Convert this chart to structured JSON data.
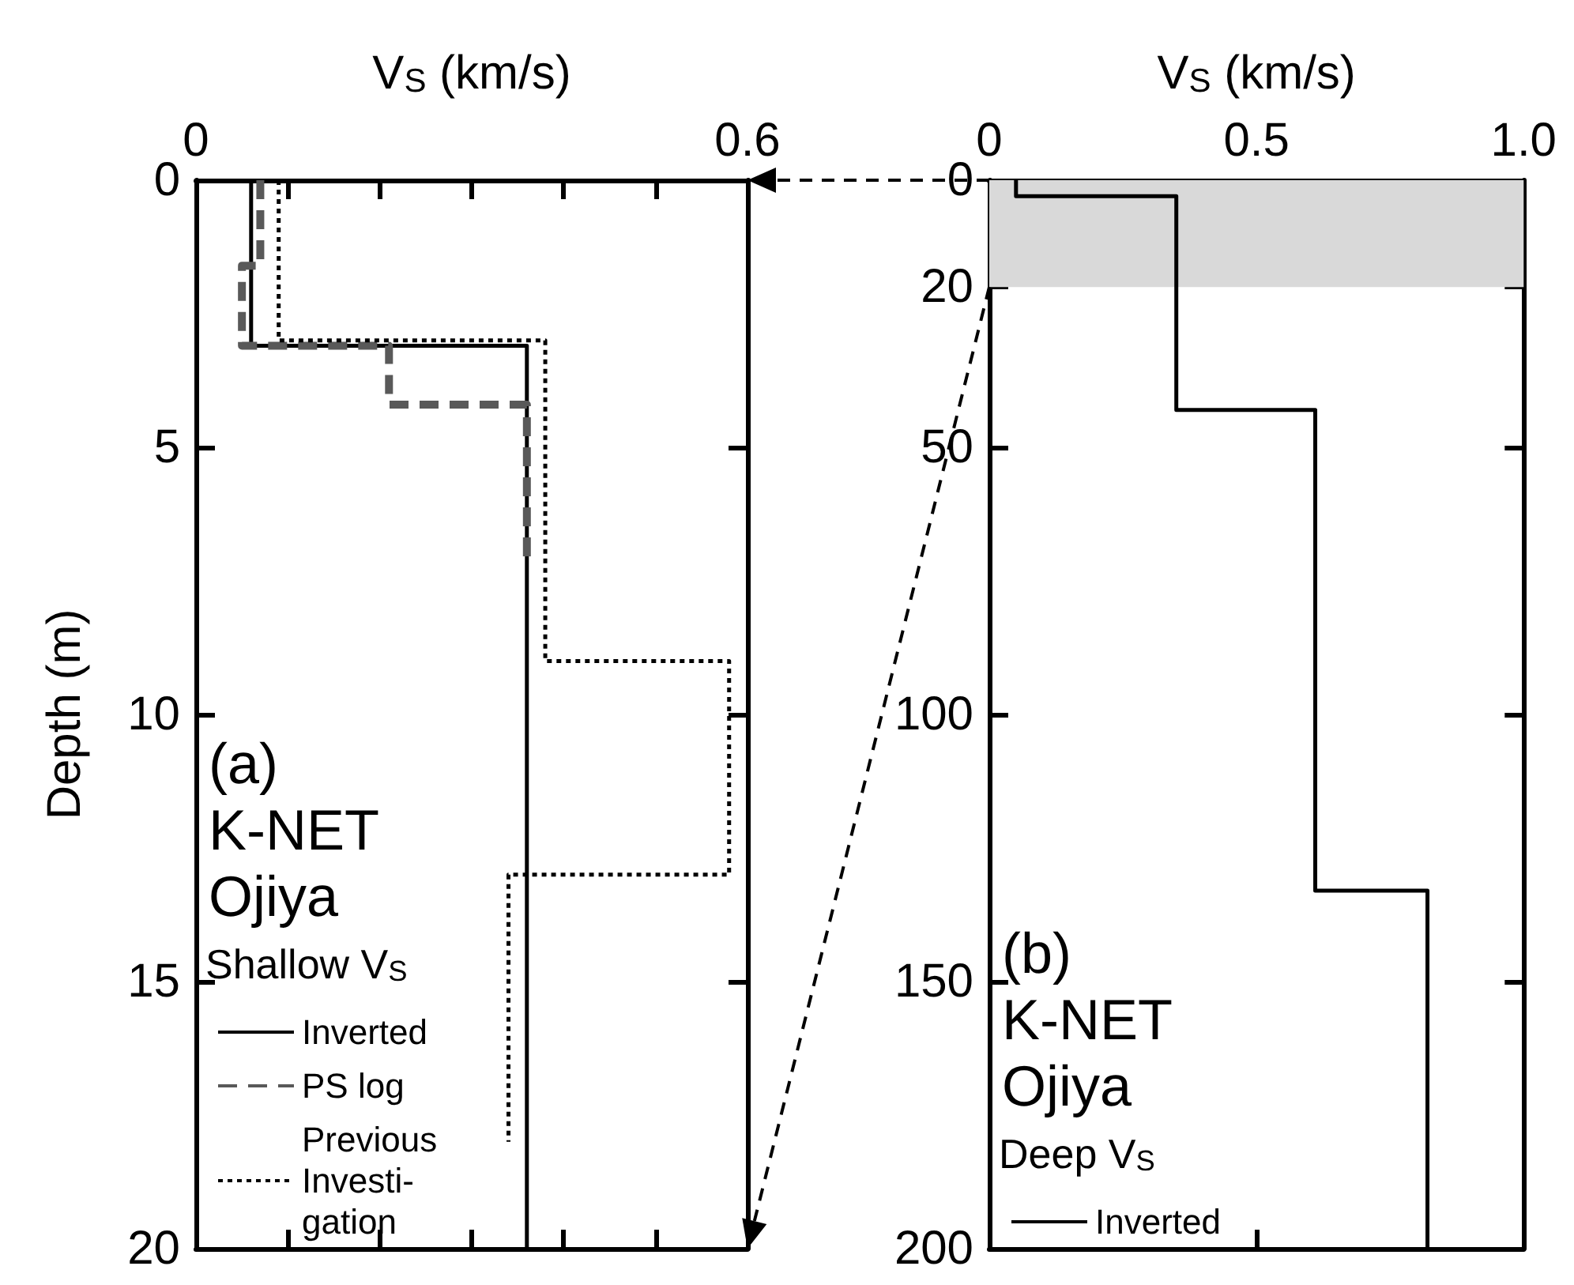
{
  "chart_data": [
    {
      "type": "line",
      "xlabel": "V$_{S}$ (km/s)",
      "ylabel": "Depth (m)",
      "xlim": [
        0,
        0.6
      ],
      "xticks": [
        0,
        {
          "value": 0.1,
          "label": null
        },
        {
          "value": 0.2,
          "label": null
        },
        {
          "value": 0.3,
          "label": null
        },
        {
          "value": 0.4,
          "label": null
        },
        {
          "value": 0.5,
          "label": null
        },
        0.6
      ],
      "ylim": [
        20,
        0
      ],
      "yticks": [
        0,
        5,
        10,
        15,
        20
      ],
      "annotations": [
        "(a)",
        "K-NET",
        "Ojiya"
      ],
      "legend_title": "Shallow V$_{S}$",
      "legend": "bottom left",
      "series": [
        {
          "name": "Inverted",
          "color": "#000000",
          "line_style": "solid",
          "x": [
            0.06,
            0.06,
            0.36,
            0.36
          ],
          "values": [
            0,
            3.1,
            3.1,
            20
          ]
        },
        {
          "name": "PS log",
          "color": "#595959",
          "line_style": "dashed",
          "x": [
            0.07,
            0.07,
            0.05,
            0.05,
            0.21,
            0.21,
            0.36,
            0.36
          ],
          "values": [
            0,
            1.6,
            1.6,
            3.1,
            3.1,
            4.2,
            4.2,
            7.1
          ]
        },
        {
          "name": "Previous\nInvesti-\ngation",
          "color": "#000000",
          "line_style": "dotted",
          "x": [
            0.09,
            0.09,
            0.38,
            0.38,
            0.58,
            0.58,
            0.34,
            0.34
          ],
          "values": [
            0,
            3,
            3,
            9,
            9,
            13,
            13,
            18
          ]
        }
      ]
    },
    {
      "type": "line",
      "xlabel": "V$_{S}$ (km/s)",
      "xlim": [
        0,
        1
      ],
      "xticks": [
        0,
        0.5,
        {
          "value": 1,
          "label": "1.0"
        }
      ],
      "ylim": [
        200,
        0
      ],
      "yticks": [
        0,
        20,
        50,
        100,
        150,
        200
      ],
      "bands": [
        {
          "axis": "y",
          "from": 0,
          "to": 20,
          "color": "#d9d9d9"
        }
      ],
      "annotations": [
        "(b)",
        "K-NET",
        "Ojiya"
      ],
      "legend_title": "Deep V$_{S}$",
      "legend": "bottom left",
      "series": [
        {
          "name": "Inverted",
          "color": "#000000",
          "line_style": "solid",
          "x": [
            0.05,
            0.05,
            0.35,
            0.35,
            0.61,
            0.61,
            0.82,
            0.82
          ],
          "values": [
            0,
            3,
            3,
            43,
            43,
            133,
            133,
            200
          ]
        }
      ]
    }
  ]
}
